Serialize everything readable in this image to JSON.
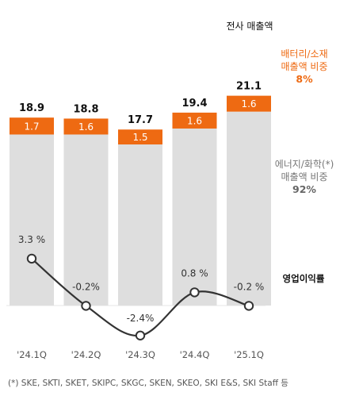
{
  "chart_data": {
    "type": "bar",
    "categories": [
      "'24.1Q",
      "'24.2Q",
      "'24.3Q",
      "'24.4Q",
      "'25.1Q"
    ],
    "totals": [
      18.9,
      18.8,
      17.7,
      19.4,
      21.1
    ],
    "total_labels": [
      "18.9",
      "18.8",
      "17.7",
      "19.4",
      "21.1"
    ],
    "series": [
      {
        "values": [
          17.2,
          17.2,
          16.2,
          17.8,
          19.5
        ]
      },
      {
        "values": [
          1.7,
          1.6,
          1.5,
          1.6,
          1.6
        ],
        "labels": [
          "1.7",
          "1.6",
          "1.5",
          "1.6",
          "1.6"
        ]
      }
    ],
    "operating_margin": {
      "values": [
        3.3,
        -0.2,
        -2.4,
        0.8,
        -0.2
      ],
      "labels": [
        "3.3 %",
        "-0.2%",
        "-2.4%",
        "0.8 %",
        "-0.2 %"
      ]
    },
    "legend": {
      "total_revenue": "전사 매출액",
      "battery_line1": "배터리/소재",
      "battery_line2": "매출액 비중",
      "battery_pct": "8%",
      "energy_line1": "에너지/화학(*)",
      "energy_line2": "매출액 비중",
      "energy_pct": "92%",
      "operating_margin": "영업이익률"
    },
    "footnote": "(*) SKE, SKTI, SKET, SKIPC, SKGC, SKEN, SKEO, SKI E&S, SKI Staff 등",
    "colors": {
      "orange": "#ee6a12",
      "grey": "#dedede",
      "line": "#333333"
    }
  }
}
